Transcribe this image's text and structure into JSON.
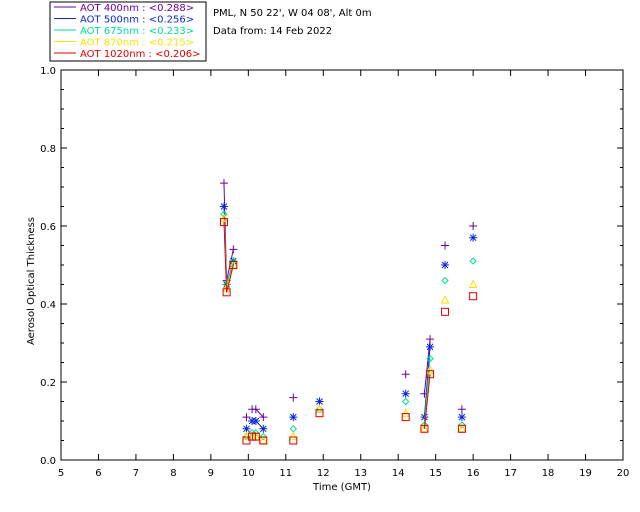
{
  "header": {
    "location": "PML, N 50 22', W 04 08', Alt 0m",
    "data_from": "Data from: 14 Feb 2022"
  },
  "legend": {
    "items": [
      {
        "label": "AOT  400nm : <0.288>",
        "color": "#6a00a8"
      },
      {
        "label": "AOT  500nm : <0.256>",
        "color": "#0a28d8"
      },
      {
        "label": "AOT  675nm : <0.233>",
        "color": "#00dc96"
      },
      {
        "label": "AOT  870nm : <0.215>",
        "color": "#ffe000"
      },
      {
        "label": "AOT 1020nm : <0.206>",
        "color": "#e00000"
      }
    ]
  },
  "chart_data": {
    "type": "scatter",
    "xlabel": "Time (GMT)",
    "ylabel": "Aerosol Optical Thickness",
    "xlim": [
      5,
      20
    ],
    "ylim": [
      0.0,
      1.0
    ],
    "xticks": [
      "5",
      "6",
      "7",
      "8",
      "9",
      "10",
      "11",
      "12",
      "13",
      "14",
      "15",
      "16",
      "17",
      "18",
      "19",
      "20"
    ],
    "yticks": [
      "0.0",
      "0.2",
      "0.4",
      "0.6",
      "0.8",
      "1.0"
    ],
    "grid": false,
    "series": [
      {
        "name": "AOT  400nm : <0.288>",
        "marker": "plus",
        "color": "#6a00a8",
        "points": [
          [
            9.35,
            0.71
          ],
          [
            9.42,
            0.46
          ],
          [
            9.6,
            0.54
          ],
          [
            9.95,
            0.11
          ],
          [
            10.1,
            0.13
          ],
          [
            10.2,
            0.13
          ],
          [
            10.4,
            0.11
          ],
          [
            11.2,
            0.16
          ],
          [
            11.9,
            0.15
          ],
          [
            14.2,
            0.22
          ],
          [
            14.7,
            0.17
          ],
          [
            14.85,
            0.31
          ],
          [
            15.25,
            0.55
          ],
          [
            15.7,
            0.13
          ],
          [
            16.0,
            0.6
          ]
        ],
        "segments": [
          [
            0,
            1
          ],
          [
            1,
            2
          ],
          [
            5,
            6
          ],
          [
            10,
            11
          ]
        ]
      },
      {
        "name": "AOT  500nm : <0.256>",
        "marker": "asterisk",
        "color": "#0a28d8",
        "points": [
          [
            9.35,
            0.65
          ],
          [
            9.42,
            0.45
          ],
          [
            9.6,
            0.51
          ],
          [
            9.95,
            0.08
          ],
          [
            10.1,
            0.1
          ],
          [
            10.2,
            0.1
          ],
          [
            10.4,
            0.08
          ],
          [
            11.2,
            0.11
          ],
          [
            11.9,
            0.15
          ],
          [
            14.2,
            0.17
          ],
          [
            14.7,
            0.11
          ],
          [
            14.85,
            0.29
          ],
          [
            15.25,
            0.5
          ],
          [
            15.7,
            0.11
          ],
          [
            16.0,
            0.57
          ]
        ],
        "segments": [
          [
            0,
            1
          ],
          [
            1,
            2
          ],
          [
            5,
            6
          ],
          [
            10,
            11
          ]
        ]
      },
      {
        "name": "AOT  675nm : <0.233>",
        "marker": "diamond",
        "color": "#00dc96",
        "points": [
          [
            9.35,
            0.63
          ],
          [
            9.42,
            0.45
          ],
          [
            9.6,
            0.51
          ],
          [
            9.95,
            0.06
          ],
          [
            10.1,
            0.07
          ],
          [
            10.2,
            0.07
          ],
          [
            10.4,
            0.06
          ],
          [
            11.2,
            0.08
          ],
          [
            11.9,
            0.13
          ],
          [
            14.2,
            0.15
          ],
          [
            14.7,
            0.09
          ],
          [
            14.85,
            0.26
          ],
          [
            15.25,
            0.46
          ],
          [
            15.7,
            0.09
          ],
          [
            16.0,
            0.51
          ]
        ],
        "segments": [
          [
            0,
            1
          ],
          [
            1,
            2
          ],
          [
            10,
            11
          ]
        ]
      },
      {
        "name": "AOT  870nm : <0.215>",
        "marker": "triangle",
        "color": "#ffe000",
        "points": [
          [
            9.35,
            0.62
          ],
          [
            9.42,
            0.44
          ],
          [
            9.6,
            0.5
          ],
          [
            9.95,
            0.06
          ],
          [
            10.1,
            0.06
          ],
          [
            10.2,
            0.06
          ],
          [
            10.4,
            0.05
          ],
          [
            11.2,
            0.06
          ],
          [
            11.9,
            0.13
          ],
          [
            14.2,
            0.12
          ],
          [
            14.7,
            0.08
          ],
          [
            14.85,
            0.23
          ],
          [
            15.25,
            0.41
          ],
          [
            15.7,
            0.08
          ],
          [
            16.0,
            0.45
          ]
        ],
        "segments": [
          [
            0,
            1
          ],
          [
            1,
            2
          ],
          [
            10,
            11
          ]
        ]
      },
      {
        "name": "AOT 1020nm : <0.206>",
        "marker": "square",
        "color": "#e00000",
        "points": [
          [
            9.35,
            0.61
          ],
          [
            9.42,
            0.43
          ],
          [
            9.6,
            0.5
          ],
          [
            9.95,
            0.05
          ],
          [
            10.1,
            0.06
          ],
          [
            10.2,
            0.06
          ],
          [
            10.4,
            0.05
          ],
          [
            11.2,
            0.05
          ],
          [
            11.9,
            0.12
          ],
          [
            14.2,
            0.11
          ],
          [
            14.7,
            0.08
          ],
          [
            14.85,
            0.22
          ],
          [
            15.25,
            0.38
          ],
          [
            15.7,
            0.08
          ],
          [
            16.0,
            0.42
          ]
        ],
        "segments": [
          [
            0,
            1
          ],
          [
            1,
            2
          ],
          [
            10,
            11
          ]
        ]
      }
    ]
  }
}
